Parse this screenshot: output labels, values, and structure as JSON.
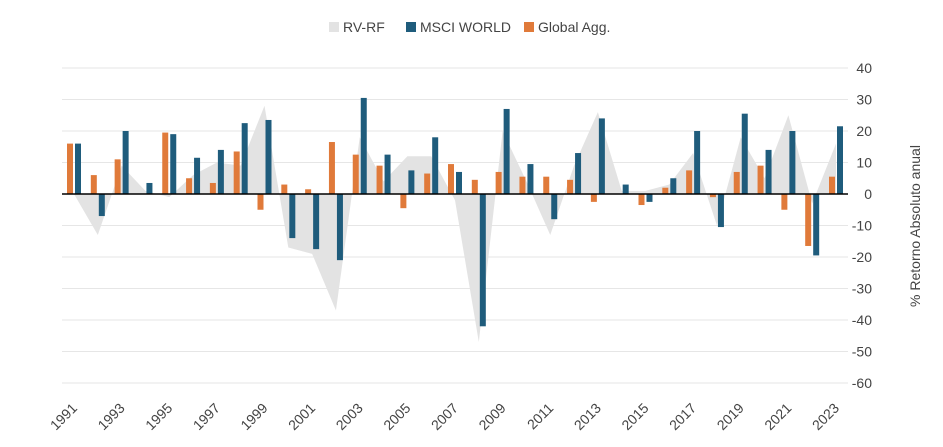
{
  "chart_data": {
    "type": "bar",
    "title": "",
    "xlabel": "",
    "ylabel": "% Retorno Absoluto anual",
    "y_axis_side": "right",
    "ylim": [
      -60,
      40
    ],
    "y_ticks": [
      40,
      30,
      20,
      10,
      0,
      -10,
      -20,
      -30,
      -40,
      -50,
      -60
    ],
    "grid": true,
    "legend_position": "top-center",
    "x_tick_labels": [
      "1991",
      "1993",
      "1995",
      "1997",
      "1999",
      "2001",
      "2003",
      "2005",
      "2007",
      "2009",
      "2011",
      "2013",
      "2015",
      "2017",
      "2019",
      "2021",
      "2023"
    ],
    "categories": [
      1991,
      1992,
      1993,
      1994,
      1995,
      1996,
      1997,
      1998,
      1999,
      2000,
      2001,
      2002,
      2003,
      2004,
      2005,
      2006,
      2007,
      2008,
      2009,
      2010,
      2011,
      2012,
      2013,
      2014,
      2015,
      2016,
      2017,
      2018,
      2019,
      2020,
      2021,
      2022,
      2023
    ],
    "series": [
      {
        "name": "RV-RF",
        "type": "area",
        "color": "#e3e3e3",
        "values": [
          0,
          -13,
          9,
          1,
          -1,
          6,
          10,
          9,
          28,
          -17,
          -19,
          -37,
          18,
          4,
          12,
          12,
          -2,
          -47,
          20,
          4,
          -13,
          9,
          26,
          1,
          1,
          3,
          13,
          -10,
          18,
          5,
          25,
          -3,
          16
        ]
      },
      {
        "name": "MSCI WORLD",
        "type": "bar",
        "color": "#1f5c7c",
        "values": [
          16,
          -7,
          20,
          3.5,
          19,
          11.5,
          14,
          22.5,
          23.5,
          -14,
          -17.5,
          -21,
          30.5,
          12.5,
          7.5,
          18,
          7,
          -42,
          27,
          9.5,
          -8,
          13,
          24,
          3,
          -2.5,
          5,
          20,
          -10.5,
          25.5,
          14,
          20,
          -19.5,
          21.5
        ]
      },
      {
        "name": "Global Agg.",
        "type": "bar",
        "color": "#e07a3a",
        "values": [
          16,
          6,
          11,
          0,
          19.5,
          5,
          3.5,
          13.5,
          -5,
          3,
          1.5,
          16.5,
          12.5,
          9,
          -4.5,
          6.5,
          9.5,
          4.5,
          7,
          5.5,
          5.5,
          4.5,
          -2.5,
          0,
          -3.5,
          2,
          7.5,
          -1,
          7,
          9,
          -5,
          -16.5,
          5.5
        ]
      }
    ]
  }
}
